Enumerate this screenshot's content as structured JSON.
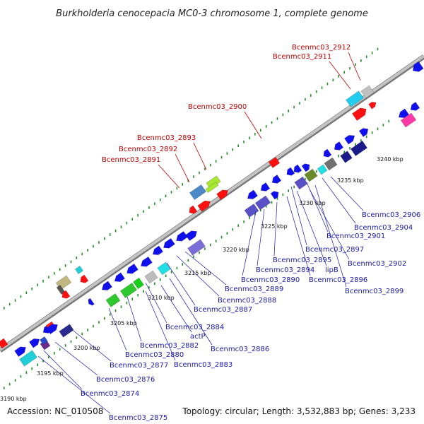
{
  "title": "Burkholderia cenocepacia MC0-3 chromosome 1, complete genome",
  "footer": {
    "accession": "Accession: NC_010508",
    "topology": "Topology: circular; Length: 3,532,883 bp; Genes: 3,233"
  },
  "colors": {
    "backbone": "#999999",
    "dots": "#228B22",
    "label_top": "#c00000",
    "label_bottom": "#1a1aa8",
    "leader": "#8888dd"
  },
  "scale_ticks": [
    "3190 kbp",
    "3195 kbp",
    "3200 kbp",
    "3205 kbp",
    "3210 kbp",
    "3215 kbp",
    "3220 kbp",
    "3225 kbp",
    "3230 kbp",
    "3235 kbp",
    "3240 kbp"
  ],
  "top_labels": [
    "Bcenmc03_2912",
    "Bcenmc03_2911",
    "Bcenmc03_2900",
    "Bcenmc03_2893",
    "Bcenmc03_2892",
    "Bcenmc03_2891"
  ],
  "bottom_labels": [
    "Bcenmc03_2906",
    "Bcenmc03_2904",
    "Bcenmc03_2901",
    "Bcenmc03_2897",
    "Bcenmc03_2902",
    "Bcenmc03_2895",
    "lipB",
    "Bcenmc03_2890",
    "Bcenmc03_2894",
    "Bcenmc03_2896",
    "Bcenmc03_2899",
    "Bcenmc03_2889",
    "Bcenmc03_2888",
    "Bcenmc03_2887",
    "Bcenmc03_2884",
    "actP",
    "Bcenmc03_2882",
    "Bcenmc03_2886",
    "Bcenmc03_2880",
    "Bcenmc03_2877",
    "Bcenmc03_2883",
    "Bcenmc03_2876",
    "Bcenmc03_2874",
    "Bcenmc03_2875"
  ]
}
